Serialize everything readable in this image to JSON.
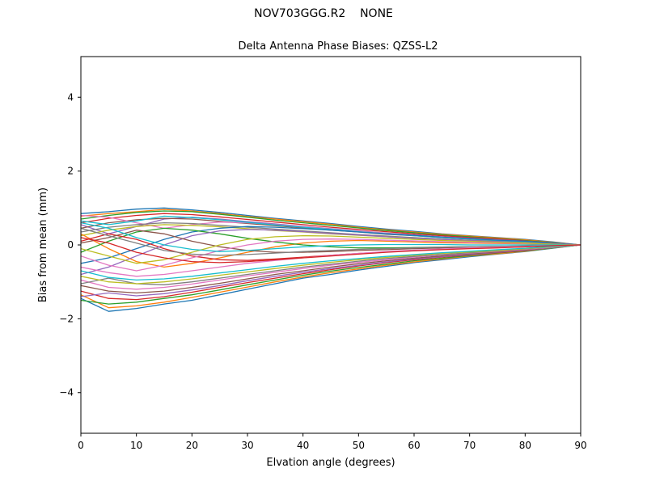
{
  "header": {
    "title": "NOV703GGG.R2    NONE"
  },
  "chart_data": {
    "type": "line",
    "title": "Delta Antenna Phase Biases: QZSS-L2",
    "xlabel": "Elvation angle (degrees)",
    "ylabel": "Bias from mean (mm)",
    "xlim": [
      0,
      90
    ],
    "ylim": [
      -5.1,
      5.1
    ],
    "x_ticks": [
      0,
      10,
      20,
      30,
      40,
      50,
      60,
      70,
      80,
      90
    ],
    "y_ticks": [
      -4,
      -2,
      0,
      2,
      4
    ],
    "grid": false,
    "legend": "none",
    "x": [
      0,
      5,
      10,
      15,
      20,
      25,
      30,
      35,
      40,
      45,
      50,
      55,
      60,
      65,
      70,
      75,
      80,
      85,
      90
    ],
    "series": [
      {
        "name": "line-01",
        "color": "#1f77b4",
        "values": [
          0.85,
          0.9,
          0.97,
          1.0,
          0.95,
          0.88,
          0.8,
          0.72,
          0.65,
          0.58,
          0.5,
          0.43,
          0.37,
          0.3,
          0.25,
          0.2,
          0.15,
          0.08,
          0
        ]
      },
      {
        "name": "line-02",
        "color": "#ff7f0e",
        "values": [
          0.78,
          0.85,
          0.9,
          0.96,
          0.92,
          0.85,
          0.77,
          0.7,
          0.63,
          0.56,
          0.48,
          0.41,
          0.35,
          0.29,
          0.24,
          0.19,
          0.14,
          0.07,
          0
        ]
      },
      {
        "name": "line-03",
        "color": "#2ca02c",
        "values": [
          0.7,
          0.8,
          0.88,
          0.92,
          0.9,
          0.83,
          0.75,
          0.67,
          0.6,
          0.53,
          0.46,
          0.39,
          0.33,
          0.27,
          0.22,
          0.17,
          0.12,
          0.06,
          0
        ]
      },
      {
        "name": "line-04",
        "color": "#d62728",
        "values": [
          0.6,
          0.72,
          0.8,
          0.85,
          0.82,
          0.76,
          0.69,
          0.62,
          0.55,
          0.48,
          0.42,
          0.36,
          0.3,
          0.25,
          0.2,
          0.16,
          0.11,
          0.05,
          0
        ]
      },
      {
        "name": "line-05",
        "color": "#9467bd",
        "values": [
          0.55,
          0.3,
          0.5,
          0.7,
          0.75,
          0.7,
          0.63,
          0.57,
          0.5,
          0.44,
          0.38,
          0.32,
          0.27,
          0.22,
          0.18,
          0.14,
          0.1,
          0.05,
          0
        ]
      },
      {
        "name": "line-06",
        "color": "#8c564b",
        "values": [
          0.45,
          0.6,
          0.68,
          0.72,
          0.7,
          0.64,
          0.58,
          0.52,
          0.46,
          0.4,
          0.35,
          0.29,
          0.25,
          0.2,
          0.16,
          0.12,
          0.08,
          0.04,
          0
        ]
      },
      {
        "name": "line-07",
        "color": "#e377c2",
        "values": [
          0.8,
          0.75,
          0.6,
          0.45,
          0.55,
          0.62,
          0.6,
          0.55,
          0.49,
          0.43,
          0.37,
          0.31,
          0.26,
          0.21,
          0.17,
          0.13,
          0.09,
          0.04,
          0
        ]
      },
      {
        "name": "line-08",
        "color": "#7f7f7f",
        "values": [
          0.35,
          0.48,
          0.55,
          0.6,
          0.58,
          0.53,
          0.48,
          0.43,
          0.38,
          0.33,
          0.28,
          0.24,
          0.2,
          0.16,
          0.13,
          0.1,
          0.07,
          0.03,
          0
        ]
      },
      {
        "name": "line-09",
        "color": "#bcbd22",
        "values": [
          0.25,
          0.4,
          0.5,
          0.55,
          0.53,
          0.49,
          0.44,
          0.39,
          0.35,
          0.3,
          0.26,
          0.22,
          0.18,
          0.15,
          0.12,
          0.09,
          0.06,
          0.03,
          0
        ]
      },
      {
        "name": "line-10",
        "color": "#17becf",
        "values": [
          0.65,
          0.55,
          0.65,
          0.78,
          0.74,
          0.68,
          0.61,
          0.54,
          0.48,
          0.42,
          0.36,
          0.3,
          0.25,
          0.2,
          0.16,
          0.12,
          0.09,
          0.04,
          0
        ]
      },
      {
        "name": "line-11",
        "color": "#1f77b4",
        "values": [
          -0.5,
          -0.35,
          -0.1,
          0.15,
          0.35,
          0.45,
          0.5,
          0.48,
          0.44,
          0.4,
          0.35,
          0.3,
          0.26,
          0.21,
          0.17,
          0.13,
          0.1,
          0.05,
          0
        ]
      },
      {
        "name": "line-12",
        "color": "#ff7f0e",
        "values": [
          0.3,
          -0.1,
          -0.45,
          -0.6,
          -0.5,
          -0.35,
          -0.2,
          -0.05,
          0.05,
          0.1,
          0.12,
          0.1,
          0.08,
          0.06,
          0.05,
          0.04,
          0.03,
          0.01,
          0
        ]
      },
      {
        "name": "line-13",
        "color": "#2ca02c",
        "values": [
          -0.2,
          0.1,
          0.35,
          0.45,
          0.4,
          0.3,
          0.18,
          0.08,
          0.0,
          -0.05,
          -0.08,
          -0.08,
          -0.07,
          -0.06,
          -0.05,
          -0.04,
          -0.03,
          -0.01,
          0
        ]
      },
      {
        "name": "line-14",
        "color": "#d62728",
        "values": [
          0.1,
          0.3,
          0.15,
          -0.1,
          -0.3,
          -0.4,
          -0.42,
          -0.38,
          -0.33,
          -0.28,
          -0.23,
          -0.19,
          -0.15,
          -0.12,
          -0.09,
          -0.07,
          -0.05,
          -0.02,
          0
        ]
      },
      {
        "name": "line-15",
        "color": "#9467bd",
        "values": [
          -0.8,
          -0.6,
          -0.3,
          0.0,
          0.25,
          0.38,
          0.42,
          0.4,
          0.36,
          0.31,
          0.27,
          0.22,
          0.18,
          0.15,
          0.12,
          0.09,
          0.06,
          0.03,
          0
        ]
      },
      {
        "name": "line-16",
        "color": "#8c564b",
        "values": [
          0.05,
          0.2,
          0.4,
          0.3,
          0.1,
          -0.05,
          -0.15,
          -0.2,
          -0.2,
          -0.18,
          -0.15,
          -0.13,
          -0.1,
          -0.08,
          -0.06,
          -0.05,
          -0.03,
          -0.01,
          0
        ]
      },
      {
        "name": "line-17",
        "color": "#e377c2",
        "values": [
          -0.3,
          -0.55,
          -0.7,
          -0.55,
          -0.35,
          -0.15,
          0.0,
          0.1,
          0.15,
          0.16,
          0.15,
          0.13,
          0.11,
          0.09,
          0.07,
          0.05,
          0.04,
          0.02,
          0
        ]
      },
      {
        "name": "line-18",
        "color": "#7f7f7f",
        "values": [
          0.45,
          0.25,
          0.05,
          -0.15,
          -0.25,
          -0.28,
          -0.26,
          -0.22,
          -0.18,
          -0.15,
          -0.12,
          -0.1,
          -0.08,
          -0.06,
          -0.05,
          -0.04,
          -0.03,
          -0.01,
          0
        ]
      },
      {
        "name": "line-19",
        "color": "#bcbd22",
        "values": [
          -0.1,
          -0.3,
          -0.5,
          -0.4,
          -0.2,
          0.0,
          0.15,
          0.22,
          0.25,
          0.24,
          0.21,
          0.18,
          0.15,
          0.12,
          0.1,
          0.07,
          0.05,
          0.02,
          0
        ]
      },
      {
        "name": "line-20",
        "color": "#17becf",
        "values": [
          0.6,
          0.45,
          0.2,
          0.0,
          -0.12,
          -0.18,
          -0.15,
          -0.1,
          -0.05,
          -0.02,
          0.0,
          0.01,
          0.01,
          0.01,
          0.0,
          0.0,
          0.0,
          0.0,
          0
        ]
      },
      {
        "name": "line-21",
        "color": "#1f77b4",
        "values": [
          -1.45,
          -1.8,
          -1.72,
          -1.6,
          -1.5,
          -1.35,
          -1.2,
          -1.05,
          -0.9,
          -0.8,
          -0.68,
          -0.58,
          -0.48,
          -0.4,
          -0.32,
          -0.25,
          -0.18,
          -0.09,
          0
        ]
      },
      {
        "name": "line-22",
        "color": "#ff7f0e",
        "values": [
          -1.35,
          -1.7,
          -1.65,
          -1.55,
          -1.42,
          -1.28,
          -1.14,
          -1.0,
          -0.87,
          -0.75,
          -0.65,
          -0.55,
          -0.46,
          -0.38,
          -0.3,
          -0.24,
          -0.17,
          -0.08,
          0
        ]
      },
      {
        "name": "line-23",
        "color": "#2ca02c",
        "values": [
          -1.5,
          -1.6,
          -1.55,
          -1.45,
          -1.35,
          -1.22,
          -1.08,
          -0.95,
          -0.82,
          -0.71,
          -0.61,
          -0.52,
          -0.43,
          -0.36,
          -0.29,
          -0.22,
          -0.16,
          -0.08,
          0
        ]
      },
      {
        "name": "line-24",
        "color": "#d62728",
        "values": [
          -1.25,
          -1.45,
          -1.48,
          -1.4,
          -1.28,
          -1.15,
          -1.02,
          -0.9,
          -0.78,
          -0.67,
          -0.57,
          -0.48,
          -0.4,
          -0.33,
          -0.27,
          -0.21,
          -0.15,
          -0.07,
          0
        ]
      },
      {
        "name": "line-25",
        "color": "#9467bd",
        "values": [
          -1.4,
          -1.3,
          -1.38,
          -1.32,
          -1.22,
          -1.1,
          -0.97,
          -0.85,
          -0.74,
          -0.64,
          -0.55,
          -0.46,
          -0.38,
          -0.32,
          -0.26,
          -0.2,
          -0.14,
          -0.07,
          0
        ]
      },
      {
        "name": "line-26",
        "color": "#8c564b",
        "values": [
          -1.1,
          -1.25,
          -1.3,
          -1.25,
          -1.15,
          -1.04,
          -0.92,
          -0.8,
          -0.7,
          -0.6,
          -0.51,
          -0.43,
          -0.36,
          -0.3,
          -0.24,
          -0.19,
          -0.13,
          -0.06,
          0
        ]
      },
      {
        "name": "line-27",
        "color": "#e377c2",
        "values": [
          -0.95,
          -1.15,
          -1.2,
          -1.15,
          -1.06,
          -0.95,
          -0.84,
          -0.74,
          -0.64,
          -0.55,
          -0.47,
          -0.4,
          -0.33,
          -0.27,
          -0.22,
          -0.17,
          -0.12,
          -0.06,
          0
        ]
      },
      {
        "name": "line-28",
        "color": "#7f7f7f",
        "values": [
          -1.05,
          -0.9,
          -1.05,
          -1.08,
          -1.0,
          -0.9,
          -0.8,
          -0.7,
          -0.6,
          -0.52,
          -0.44,
          -0.37,
          -0.31,
          -0.26,
          -0.21,
          -0.16,
          -0.11,
          -0.05,
          0
        ]
      },
      {
        "name": "line-29",
        "color": "#bcbd22",
        "values": [
          -0.85,
          -1.0,
          -1.05,
          -1.0,
          -0.92,
          -0.82,
          -0.73,
          -0.64,
          -0.55,
          -0.47,
          -0.4,
          -0.34,
          -0.28,
          -0.23,
          -0.19,
          -0.15,
          -0.1,
          -0.05,
          0
        ]
      },
      {
        "name": "line-30",
        "color": "#17becf",
        "values": [
          -0.7,
          -0.88,
          -0.95,
          -0.92,
          -0.85,
          -0.76,
          -0.67,
          -0.58,
          -0.5,
          -0.43,
          -0.37,
          -0.31,
          -0.26,
          -0.21,
          -0.17,
          -0.13,
          -0.09,
          -0.04,
          0
        ]
      },
      {
        "name": "line-31",
        "color": "#e377c2",
        "values": [
          -0.6,
          -0.75,
          -0.85,
          -0.8,
          -0.7,
          -0.6,
          -0.5,
          -0.42,
          -0.35,
          -0.28,
          -0.23,
          -0.18,
          -0.14,
          -0.11,
          -0.08,
          -0.06,
          -0.04,
          -0.02,
          0
        ]
      },
      {
        "name": "line-32",
        "color": "#d62728",
        "values": [
          0.2,
          0.05,
          -0.2,
          -0.35,
          -0.45,
          -0.48,
          -0.45,
          -0.4,
          -0.35,
          -0.3,
          -0.25,
          -0.2,
          -0.16,
          -0.13,
          -0.1,
          -0.08,
          -0.05,
          -0.02,
          0
        ]
      }
    ]
  }
}
